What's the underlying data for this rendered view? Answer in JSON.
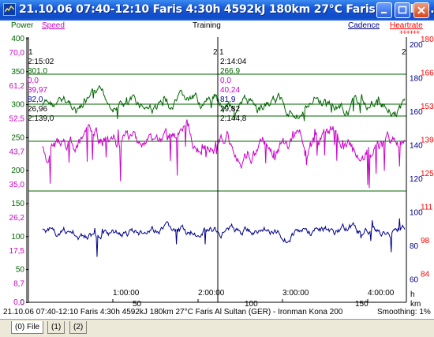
{
  "window": {
    "title": "21.10.06 07:40-12:10 Faris 4:30h 4592kJ 180km 27°C Faris Al Sulta..."
  },
  "header": {
    "power_label": "Power",
    "speed_label": "Speed",
    "training_label": "Training",
    "cadence_label": "Cadence",
    "heartrate_label": "Heartrate",
    "heartrate_marks": "++++++"
  },
  "axes": {
    "power_ticks": [
      "400",
      "350",
      "300",
      "250",
      "200",
      "150",
      "100",
      "50",
      "0"
    ],
    "speed_ticks": [
      "70,0",
      "61,2",
      "52,5",
      "43,7",
      "35,0",
      "26,2",
      "17,5",
      "8,7",
      "0,0"
    ],
    "cadence_ticks": [
      "200",
      "180",
      "160",
      "140",
      "120",
      "100",
      "80",
      "60"
    ],
    "heartrate_ticks": [
      "180",
      "166",
      "153",
      "139",
      "125",
      "111",
      "98",
      "84"
    ],
    "time_ticks": [
      "1:00:00",
      "2:00:00",
      "3:00:00",
      "4:00:00"
    ],
    "time_unit": "h",
    "distance_ticks": [
      "50",
      "100",
      "150"
    ],
    "distance_unit": "km"
  },
  "markers": {
    "m1": {
      "label_left": "1",
      "label_right": "2",
      "time": "2:15:02",
      "power": "301,0",
      "speed": "0,0",
      "v3": "39,97",
      "v4": "82,0",
      "v5": "26,96",
      "v6": "2:139,0"
    },
    "m2": {
      "label_left": "1",
      "label_right": "2",
      "time": "2:14:04",
      "power": "266,9",
      "speed": "0,0",
      "v3": "40,24",
      "v4": "81,9",
      "v5": "29,82",
      "v6": "2:144,8"
    }
  },
  "status": {
    "text": "21.10.06 07:40-12:10 Faris 4:30h 4592kJ 180km 27°C Faris Al Sultan (GER) - Ironman Kona 200",
    "smoothing": "Smoothing: 1%"
  },
  "tabs": [
    {
      "label": "(0) File",
      "active": true
    },
    {
      "label": "(1)",
      "active": false
    },
    {
      "label": "(2)",
      "active": false
    }
  ],
  "colors": {
    "power": "#006400",
    "speed": "#cc00cc",
    "cadence": "#00008b",
    "heartrate": "#ff0000",
    "title_blue": "#0f4cc8"
  }
}
